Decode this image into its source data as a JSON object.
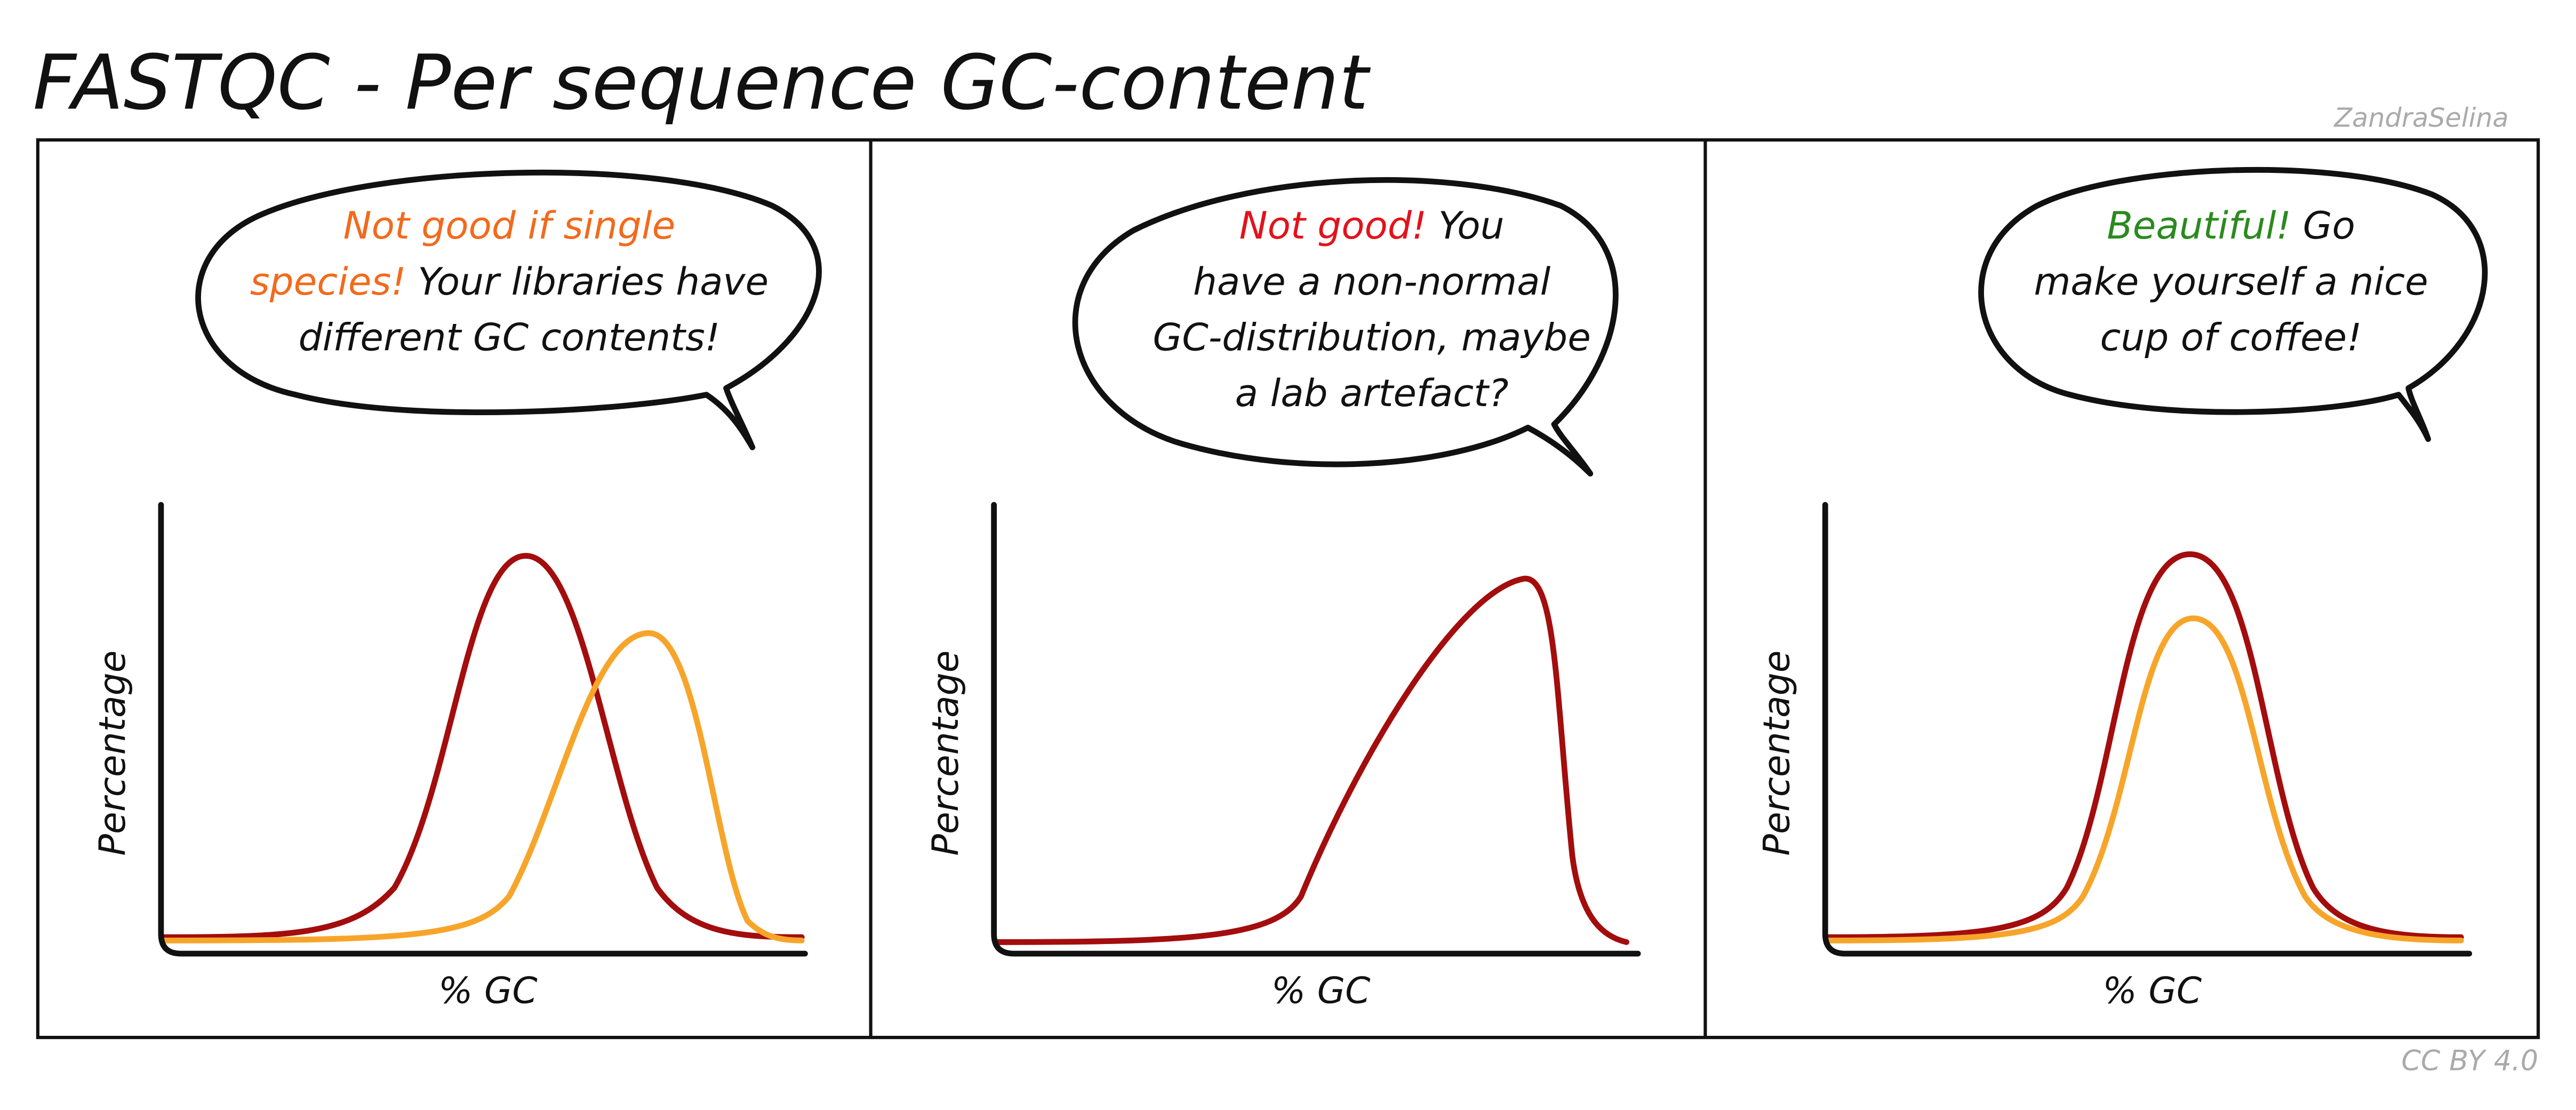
{
  "header": {
    "title": "FASTQC - Per sequence GC-content",
    "credit": "ZandraSelina"
  },
  "footer": {
    "license": "CC BY 4.0"
  },
  "panels": [
    {
      "speech": [
        [
          {
            "text": "Not good if single",
            "color": "#f26a1c"
          }
        ],
        [
          {
            "text": "species!",
            "color": "#f26a1c"
          },
          {
            "text": "Your libraries have"
          }
        ],
        [
          {
            "text": "different GC contents!"
          }
        ]
      ],
      "y_label": "Percentage",
      "x_label": "% GC"
    },
    {
      "speech": [
        [
          {
            "text": "Not good!",
            "color": "#e3121b"
          },
          {
            "text": "You"
          }
        ],
        [
          {
            "text": "have a non-normal"
          }
        ],
        [
          {
            "text": "GC-distribution, maybe"
          }
        ],
        [
          {
            "text": "a lab artefact?"
          }
        ]
      ],
      "y_label": "Percentage",
      "x_label": "% GC"
    },
    {
      "speech": [
        [
          {
            "text": "Beautiful!",
            "color": "#2a8a1e"
          },
          {
            "text": "Go"
          }
        ],
        [
          {
            "text": "make yourself a nice"
          }
        ],
        [
          {
            "text": "cup of coffee!"
          }
        ]
      ],
      "y_label": "Percentage",
      "x_label": "% GC"
    }
  ]
}
